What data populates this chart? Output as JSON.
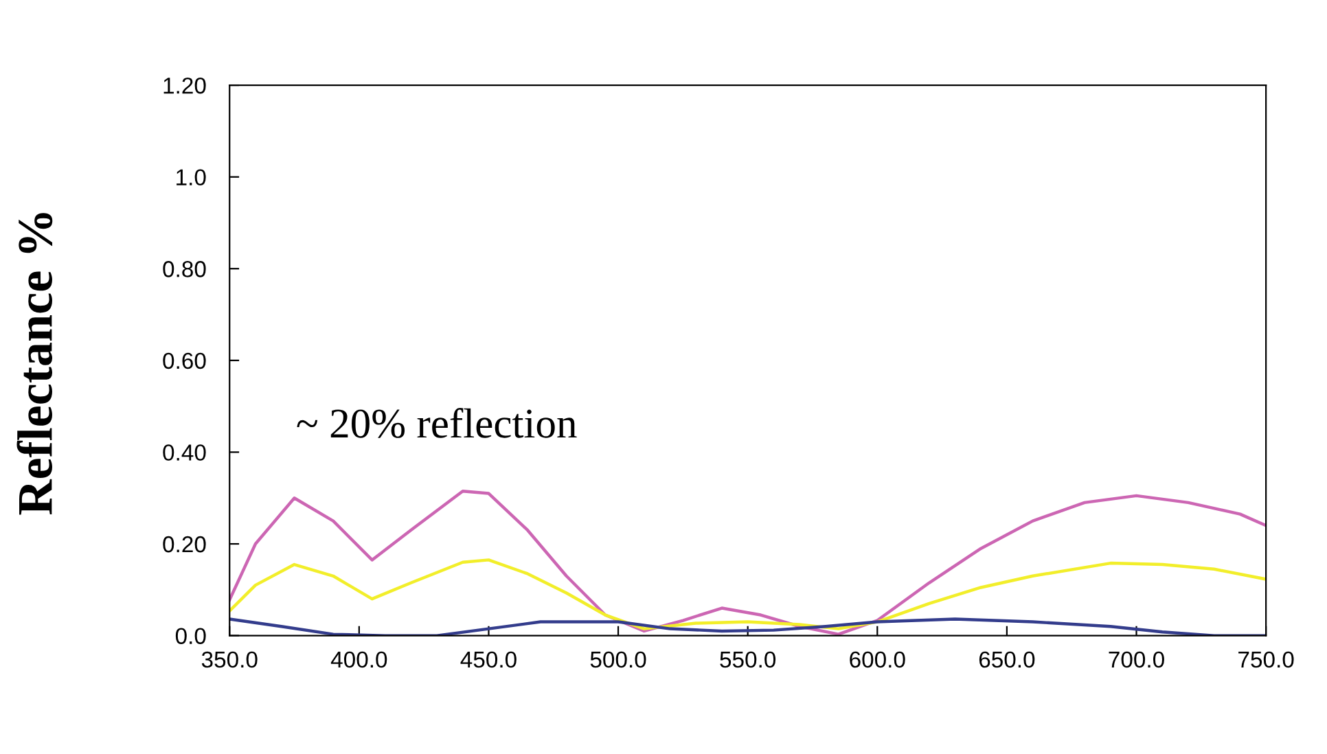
{
  "chart_data": {
    "type": "line",
    "ylabel": "Reflectance %",
    "annotations": [
      "~ 20% reflection"
    ],
    "xlim": [
      350,
      750
    ],
    "xticks": [
      {
        "value": 350,
        "label": "350.0"
      },
      {
        "value": 400,
        "label": "400.0"
      },
      {
        "value": 450,
        "label": "450.0"
      },
      {
        "value": 500,
        "label": "500.0"
      },
      {
        "value": 550,
        "label": "550.0"
      },
      {
        "value": 600,
        "label": "600.0"
      },
      {
        "value": 650,
        "label": "650.0"
      },
      {
        "value": 700,
        "label": "700.0"
      },
      {
        "value": 750,
        "label": "750.0"
      }
    ],
    "ylim": [
      0,
      1.2
    ],
    "yticks": [
      {
        "value": 0,
        "label": "0.0"
      },
      {
        "value": 0.2,
        "label": "0.20"
      },
      {
        "value": 0.4,
        "label": "0.40"
      },
      {
        "value": 0.6,
        "label": "0.60"
      },
      {
        "value": 0.8,
        "label": "0.80"
      },
      {
        "value": 1.0,
        "label": "1.0"
      },
      {
        "value": 1.2,
        "label": "1.20"
      }
    ],
    "grid": false,
    "series": [
      {
        "color": "#cc66b3",
        "x": [
          350,
          360,
          375,
          390,
          405,
          420,
          440,
          450,
          465,
          480,
          495,
          510,
          525,
          540,
          555,
          570,
          585,
          600,
          620,
          640,
          660,
          680,
          700,
          720,
          740,
          750
        ],
        "values": [
          0.078,
          0.2,
          0.3,
          0.25,
          0.165,
          0.23,
          0.315,
          0.31,
          0.23,
          0.13,
          0.045,
          0.01,
          0.033,
          0.06,
          0.045,
          0.02,
          0.003,
          0.033,
          0.115,
          0.19,
          0.25,
          0.29,
          0.305,
          0.29,
          0.265,
          0.24
        ]
      },
      {
        "color": "#f2ee2a",
        "x": [
          350,
          360,
          375,
          390,
          405,
          420,
          440,
          450,
          465,
          480,
          495,
          510,
          530,
          550,
          570,
          585,
          600,
          620,
          640,
          660,
          690,
          710,
          730,
          750
        ],
        "values": [
          0.054,
          0.11,
          0.155,
          0.13,
          0.08,
          0.115,
          0.16,
          0.165,
          0.135,
          0.093,
          0.045,
          0.015,
          0.027,
          0.03,
          0.024,
          0.015,
          0.03,
          0.07,
          0.105,
          0.13,
          0.158,
          0.155,
          0.145,
          0.123
        ]
      },
      {
        "color": "#333c8c",
        "x": [
          350,
          370,
          390,
          410,
          430,
          450,
          470,
          500,
          520,
          540,
          560,
          580,
          600,
          630,
          660,
          690,
          710,
          730,
          750
        ],
        "values": [
          0.036,
          0.02,
          0.003,
          0,
          0,
          0.015,
          0.03,
          0.03,
          0.015,
          0.01,
          0.012,
          0.02,
          0.03,
          0.036,
          0.03,
          0.02,
          0.008,
          0,
          0
        ]
      }
    ]
  }
}
